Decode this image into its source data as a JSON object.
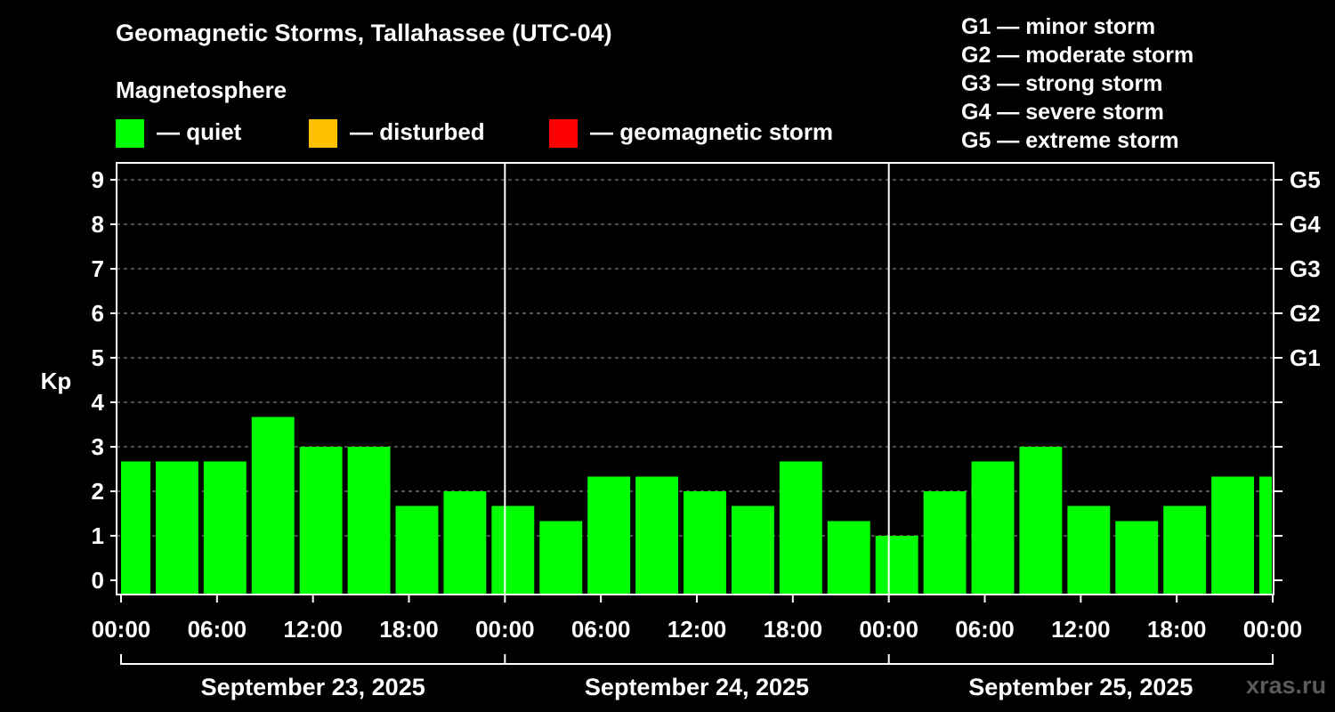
{
  "header": {
    "title": "Geomagnetic Storms, Tallahassee (UTC-04)",
    "magnetosphere_label": "Magnetosphere"
  },
  "legend": {
    "quiet": "— quiet",
    "disturbed": "— disturbed",
    "storm": "— geomagnetic storm",
    "colors": {
      "quiet": "#00ff00",
      "disturbed": "#ffc000",
      "storm": "#ff0000"
    }
  },
  "g_levels": [
    "G1 — minor storm",
    "G2 — moderate storm",
    "G3 — strong storm",
    "G4 — severe storm",
    "G5 — extreme storm"
  ],
  "watermark": "xras.ru",
  "chart_data": {
    "type": "bar",
    "title": "Geomagnetic Storms, Tallahassee (UTC-04)",
    "ylabel": "Kp",
    "xlabel": "",
    "ylim": [
      0,
      9
    ],
    "yticks": [
      "0",
      "1",
      "2",
      "3",
      "4",
      "5",
      "6",
      "7",
      "8",
      "9"
    ],
    "right_axis_labels": [
      {
        "kp": 5,
        "label": "G1"
      },
      {
        "kp": 6,
        "label": "G2"
      },
      {
        "kp": 7,
        "label": "G3"
      },
      {
        "kp": 8,
        "label": "G4"
      },
      {
        "kp": 9,
        "label": "G5"
      }
    ],
    "x_range_hours": [
      0,
      72
    ],
    "xticks": [
      {
        "hour": 0,
        "label": "00:00"
      },
      {
        "hour": 6,
        "label": "06:00"
      },
      {
        "hour": 12,
        "label": "12:00"
      },
      {
        "hour": 18,
        "label": "18:00"
      },
      {
        "hour": 24,
        "label": "00:00"
      },
      {
        "hour": 30,
        "label": "06:00"
      },
      {
        "hour": 36,
        "label": "12:00"
      },
      {
        "hour": 42,
        "label": "18:00"
      },
      {
        "hour": 48,
        "label": "00:00"
      },
      {
        "hour": 54,
        "label": "06:00"
      },
      {
        "hour": 60,
        "label": "12:00"
      },
      {
        "hour": 66,
        "label": "18:00"
      },
      {
        "hour": 72,
        "label": "00:00"
      }
    ],
    "days": [
      {
        "label": "September 23, 2025",
        "start_hour": 0,
        "end_hour": 24
      },
      {
        "label": "September 24, 2025",
        "start_hour": 24,
        "end_hour": 48
      },
      {
        "label": "September 25, 2025",
        "start_hour": 48,
        "end_hour": 72
      }
    ],
    "series": [
      {
        "name": "Kp",
        "bars": [
          {
            "start_hour": 0,
            "end_hour": 2,
            "kp": 2.67
          },
          {
            "start_hour": 2,
            "end_hour": 5,
            "kp": 2.67
          },
          {
            "start_hour": 5,
            "end_hour": 8,
            "kp": 2.67
          },
          {
            "start_hour": 8,
            "end_hour": 11,
            "kp": 3.67
          },
          {
            "start_hour": 11,
            "end_hour": 14,
            "kp": 3.0
          },
          {
            "start_hour": 14,
            "end_hour": 17,
            "kp": 3.0
          },
          {
            "start_hour": 17,
            "end_hour": 20,
            "kp": 1.67
          },
          {
            "start_hour": 20,
            "end_hour": 23,
            "kp": 2.0
          },
          {
            "start_hour": 23,
            "end_hour": 26,
            "kp": 1.67
          },
          {
            "start_hour": 26,
            "end_hour": 29,
            "kp": 1.33
          },
          {
            "start_hour": 29,
            "end_hour": 32,
            "kp": 2.33
          },
          {
            "start_hour": 32,
            "end_hour": 35,
            "kp": 2.33
          },
          {
            "start_hour": 35,
            "end_hour": 38,
            "kp": 2.0
          },
          {
            "start_hour": 38,
            "end_hour": 41,
            "kp": 1.67
          },
          {
            "start_hour": 41,
            "end_hour": 44,
            "kp": 2.67
          },
          {
            "start_hour": 44,
            "end_hour": 47,
            "kp": 1.33
          },
          {
            "start_hour": 47,
            "end_hour": 50,
            "kp": 1.0
          },
          {
            "start_hour": 50,
            "end_hour": 53,
            "kp": 2.0
          },
          {
            "start_hour": 53,
            "end_hour": 56,
            "kp": 2.67
          },
          {
            "start_hour": 56,
            "end_hour": 59,
            "kp": 3.0
          },
          {
            "start_hour": 59,
            "end_hour": 62,
            "kp": 1.67
          },
          {
            "start_hour": 62,
            "end_hour": 65,
            "kp": 1.33
          },
          {
            "start_hour": 65,
            "end_hour": 68,
            "kp": 1.67
          },
          {
            "start_hour": 68,
            "end_hour": 71,
            "kp": 2.33
          },
          {
            "start_hour": 71,
            "end_hour": 72,
            "kp": 2.33
          }
        ]
      }
    ],
    "grid": "horizontal dashed at 5-9",
    "legend_position": "top"
  }
}
